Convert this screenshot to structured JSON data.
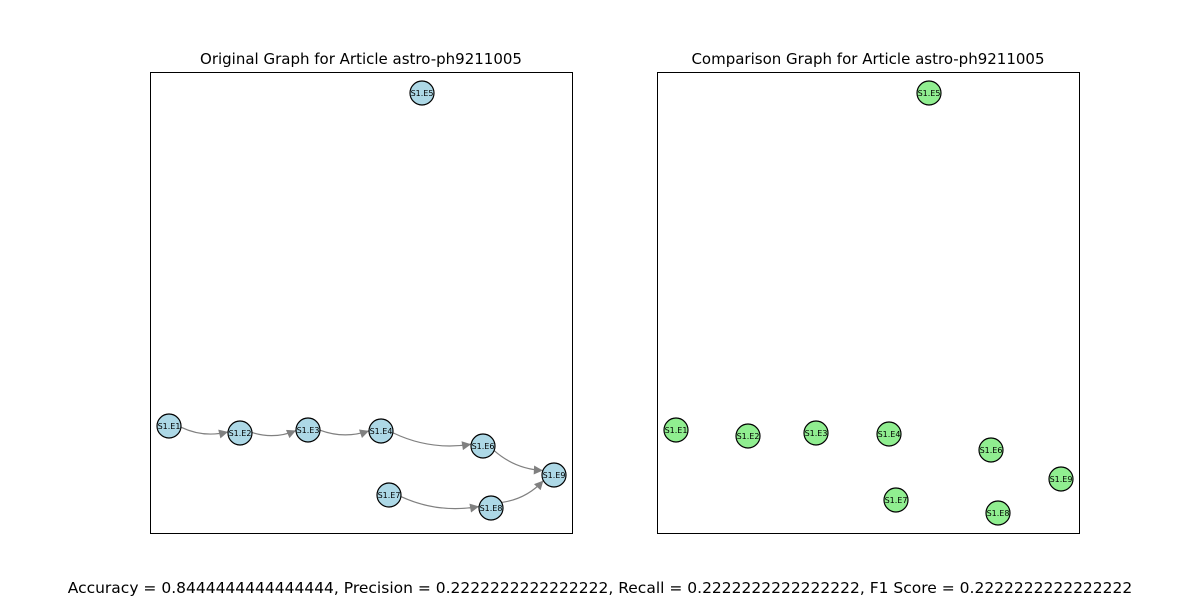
{
  "colors": {
    "original_node": "#add8e6",
    "comparison_node": "#90ee90",
    "edge": "#808080"
  },
  "panels": [
    {
      "title": "Original Graph for Article astro-ph9211005",
      "nodes": [
        "S1.E1",
        "S1.E2",
        "S1.E3",
        "S1.E4",
        "S1.E5",
        "S1.E6",
        "S1.E7",
        "S1.E8",
        "S1.E9"
      ],
      "edges": [
        [
          "S1.E1",
          "S1.E2"
        ],
        [
          "S1.E2",
          "S1.E3"
        ],
        [
          "S1.E3",
          "S1.E4"
        ],
        [
          "S1.E4",
          "S1.E6"
        ],
        [
          "S1.E6",
          "S1.E9"
        ],
        [
          "S1.E7",
          "S1.E8"
        ],
        [
          "S1.E8",
          "S1.E9"
        ]
      ]
    },
    {
      "title": "Comparison Graph for Article astro-ph9211005",
      "nodes": [
        "S1.E1",
        "S1.E2",
        "S1.E3",
        "S1.E4",
        "S1.E5",
        "S1.E6",
        "S1.E7",
        "S1.E8",
        "S1.E9"
      ],
      "edges": []
    }
  ],
  "metrics": "Accuracy = 0.8444444444444444, Precision = 0.2222222222222222, Recall = 0.2222222222222222, F1 Score = 0.2222222222222222"
}
